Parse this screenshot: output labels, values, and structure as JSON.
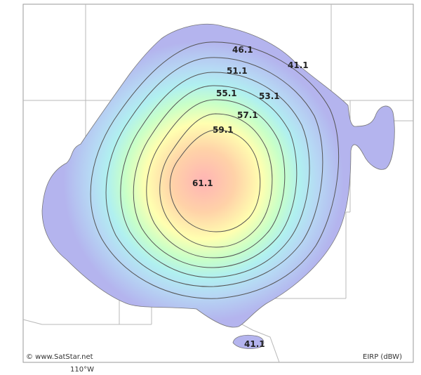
{
  "map": {
    "credit": "© www.SatStar.net",
    "legend_unit": "EIRP (dBW)",
    "longitude_tick": "110°W"
  },
  "contours": [
    {
      "id": "c41a",
      "label": "41.1"
    },
    {
      "id": "c46",
      "label": "46.1"
    },
    {
      "id": "c51",
      "label": "51.1"
    },
    {
      "id": "c53",
      "label": "53.1"
    },
    {
      "id": "c55",
      "label": "55.1"
    },
    {
      "id": "c57",
      "label": "57.1"
    },
    {
      "id": "c59",
      "label": "59.1"
    },
    {
      "id": "c61",
      "label": "61.1"
    },
    {
      "id": "c41b",
      "label": "41.1"
    }
  ],
  "colors": {
    "background": "#ffffff",
    "border": "#9a9a9a",
    "boundary": "#b8b8b8",
    "outer": "#b4b4ee",
    "peak": "#ffb4b4",
    "contour_line": "#555555"
  }
}
